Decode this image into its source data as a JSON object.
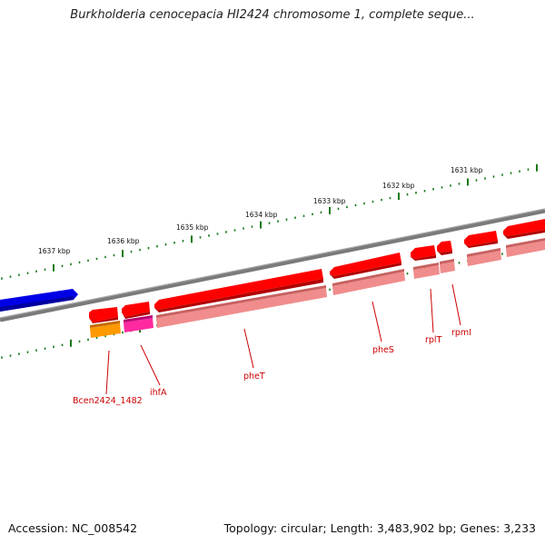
{
  "header": {
    "title": "Burkholderia cenocepacia HI2424 chromosome 1, complete seque..."
  },
  "footer": {
    "accession": "Accession: NC_008542",
    "summary": "Topology: circular; Length: 3,483,902 bp; Genes: 3,233"
  },
  "scale": {
    "labels": [
      "1637 kbp",
      "1636 kbp",
      "1635 kbp",
      "1634 kbp",
      "1633 kbp",
      "1632 kbp",
      "1631 kbp"
    ]
  },
  "genes": {
    "labels": [
      "Bcen2424_1482",
      "ihfA",
      "pheT",
      "pheS",
      "rplT",
      "rpmI"
    ]
  },
  "colors": {
    "backbone": "#808080",
    "tick": "#1a7a1a",
    "gene": "#ff0000",
    "gene_dark": "#b00000",
    "cds": "#f08c8c",
    "cds_dark": "#c86060",
    "upstream_gene": "#0000e6",
    "orange_cds": "#ff9900",
    "magenta_cds": "#ff2aa0",
    "label": "#cc0000"
  }
}
